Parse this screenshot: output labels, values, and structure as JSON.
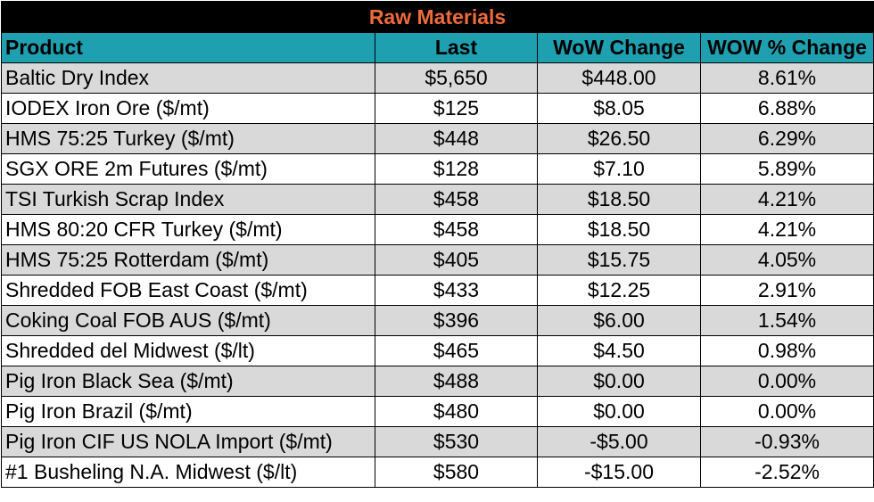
{
  "title": "Raw Materials",
  "colors": {
    "title_bg": "#000000",
    "title_text": "#ED6A3A",
    "header_bg": "#1FA0B0",
    "shaded_row": "#D9D9D9"
  },
  "headers": {
    "product": "Product",
    "last": "Last",
    "wow_change": "WoW Change",
    "wow_pct": "WOW % Change"
  },
  "rows": [
    {
      "product": "Baltic Dry Index",
      "last": "$5,650",
      "wow_change": "$448.00",
      "wow_pct": "8.61%"
    },
    {
      "product": "IODEX  Iron Ore ($/mt)",
      "last": "$125",
      "wow_change": "$8.05",
      "wow_pct": "6.88%"
    },
    {
      "product": "HMS 75:25 Turkey ($/mt)",
      "last": "$448",
      "wow_change": "$26.50",
      "wow_pct": "6.29%"
    },
    {
      "product": "SGX ORE 2m Futures ($/mt)",
      "last": "$128",
      "wow_change": "$7.10",
      "wow_pct": "5.89%"
    },
    {
      "product": "TSI Turkish Scrap Index",
      "last": "$458",
      "wow_change": "$18.50",
      "wow_pct": "4.21%"
    },
    {
      "product": "HMS 80:20 CFR Turkey ($/mt)",
      "last": "$458",
      "wow_change": "$18.50",
      "wow_pct": "4.21%"
    },
    {
      "product": "HMS 75:25 Rotterdam ($/mt)",
      "last": "$405",
      "wow_change": "$15.75",
      "wow_pct": "4.05%"
    },
    {
      "product": "Shredded FOB East Coast ($/mt)",
      "last": "$433",
      "wow_change": "$12.25",
      "wow_pct": "2.91%"
    },
    {
      "product": "Coking Coal FOB AUS ($/mt)",
      "last": "$396",
      "wow_change": "$6.00",
      "wow_pct": "1.54%"
    },
    {
      "product": "Shredded del  Midwest ($/lt)",
      "last": "$465",
      "wow_change": "$4.50",
      "wow_pct": "0.98%"
    },
    {
      "product": "Pig Iron Black Sea ($/mt)",
      "last": "$488",
      "wow_change": "$0.00",
      "wow_pct": "0.00%"
    },
    {
      "product": "Pig Iron Brazil ($/mt)",
      "last": "$480",
      "wow_change": "$0.00",
      "wow_pct": "0.00%"
    },
    {
      "product": "Pig Iron CIF US NOLA Import ($/mt)",
      "last": "$530",
      "wow_change": "-$5.00",
      "wow_pct": "-0.93%"
    },
    {
      "product": "#1 Busheling N.A. Midwest ($/lt)",
      "last": "$580",
      "wow_change": "-$15.00",
      "wow_pct": "-2.52%"
    }
  ]
}
